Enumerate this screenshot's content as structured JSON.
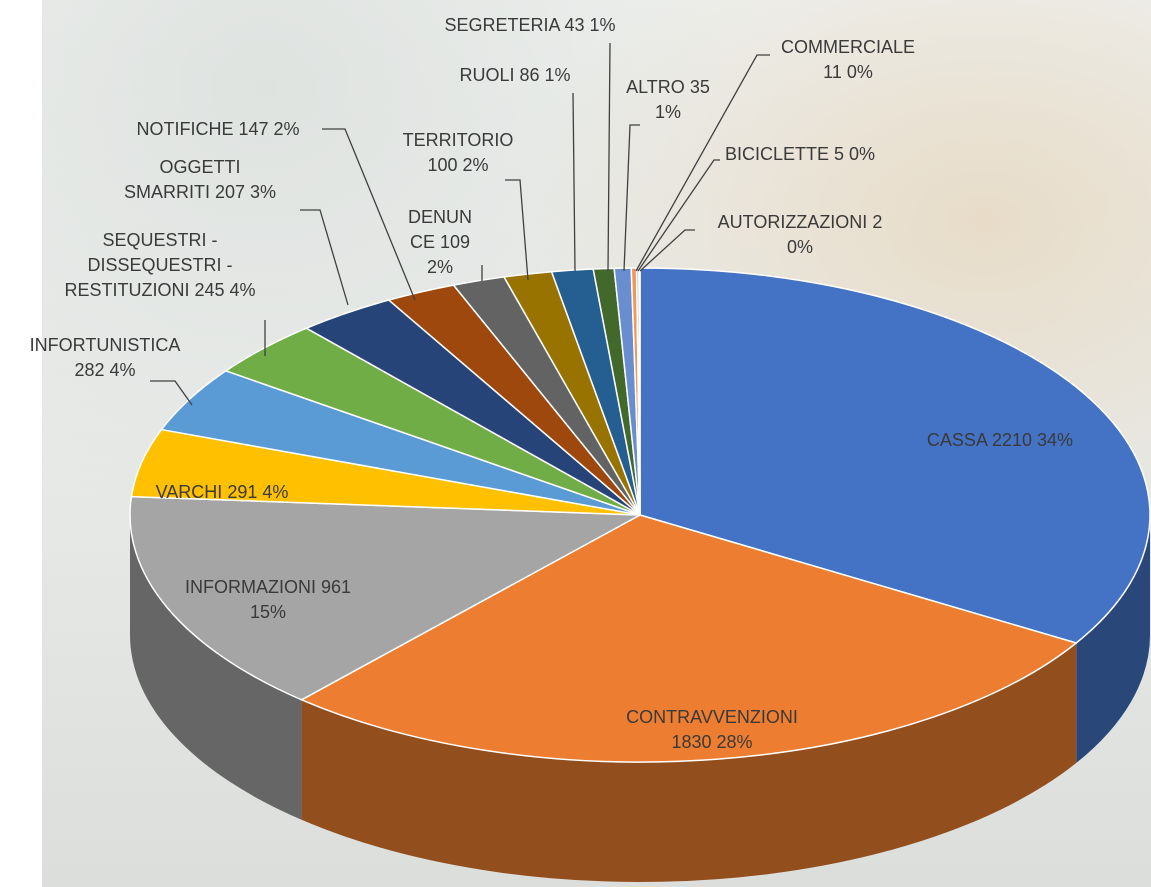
{
  "chart_data": {
    "type": "pie",
    "categories": [
      "CASSA",
      "CONTRAVVENZIONI",
      "INFORMAZIONI",
      "VARCHI",
      "INFORTUNISTICA",
      "SEQUESTRI - DISSEQUESTRI - RESTITUZIONI",
      "OGGETTI SMARRITI",
      "NOTIFICHE",
      "DENUNCE",
      "TERRITORIO",
      "RUOLI",
      "SEGRETERIA",
      "ALTRO",
      "COMMERCIALE",
      "BICICLETTE",
      "AUTORIZZAZIONI"
    ],
    "values": [
      2210,
      1830,
      961,
      291,
      282,
      245,
      207,
      147,
      109,
      100,
      86,
      43,
      35,
      11,
      5,
      2
    ],
    "percent_labels": [
      "34%",
      "28%",
      "15%",
      "4%",
      "4%",
      "4%",
      "3%",
      "2%",
      "2%",
      "2%",
      "1%",
      "1%",
      "1%",
      "0%",
      "0%",
      "0%"
    ],
    "colors": [
      "#4472c4",
      "#ed7d31",
      "#a5a5a5",
      "#ffc000",
      "#5b9bd5",
      "#70ad47",
      "#264478",
      "#9e480e",
      "#636363",
      "#997300",
      "#255e91",
      "#43682b",
      "#698ed0",
      "#f1975a",
      "#b7b7b7",
      "#ffcd33"
    ]
  }
}
